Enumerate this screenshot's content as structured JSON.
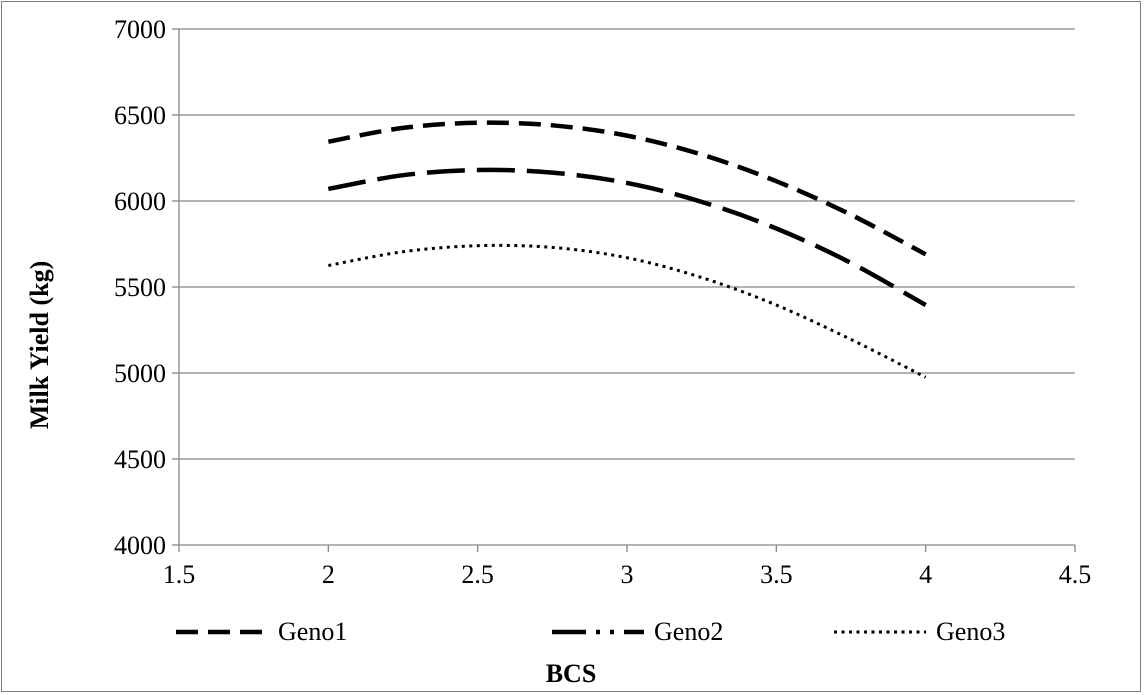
{
  "chart_data": {
    "type": "line",
    "xlabel": "BCS",
    "ylabel": "Milk Yield (kg)",
    "xlim": [
      1.5,
      4.5
    ],
    "ylim": [
      4000,
      7000
    ],
    "xticks": [
      "1.5",
      "2",
      "2.5",
      "3",
      "3.5",
      "4",
      "4.5"
    ],
    "yticks": [
      "4000",
      "4500",
      "5000",
      "5500",
      "6000",
      "6500",
      "7000"
    ],
    "grid": true,
    "legend_position": "bottom",
    "series": [
      {
        "name": "Geno1",
        "style": "short-dash",
        "x": [
          2.0,
          2.25,
          2.5,
          2.75,
          3.0,
          3.25,
          3.5,
          3.75,
          4.0
        ],
        "y": [
          6345,
          6425,
          6455,
          6440,
          6380,
          6270,
          6115,
          5920,
          5690
        ]
      },
      {
        "name": "Geno2",
        "style": "long-dash",
        "x": [
          2.0,
          2.25,
          2.5,
          2.75,
          3.0,
          3.25,
          3.5,
          3.75,
          4.0
        ],
        "y": [
          6070,
          6150,
          6180,
          6165,
          6105,
          5995,
          5840,
          5640,
          5395
        ]
      },
      {
        "name": "Geno3",
        "style": "dotted",
        "x": [
          2.0,
          2.25,
          2.5,
          2.75,
          3.0,
          3.25,
          3.5,
          3.75,
          4.0
        ],
        "y": [
          5625,
          5705,
          5740,
          5730,
          5670,
          5555,
          5395,
          5195,
          4975
        ]
      }
    ]
  }
}
